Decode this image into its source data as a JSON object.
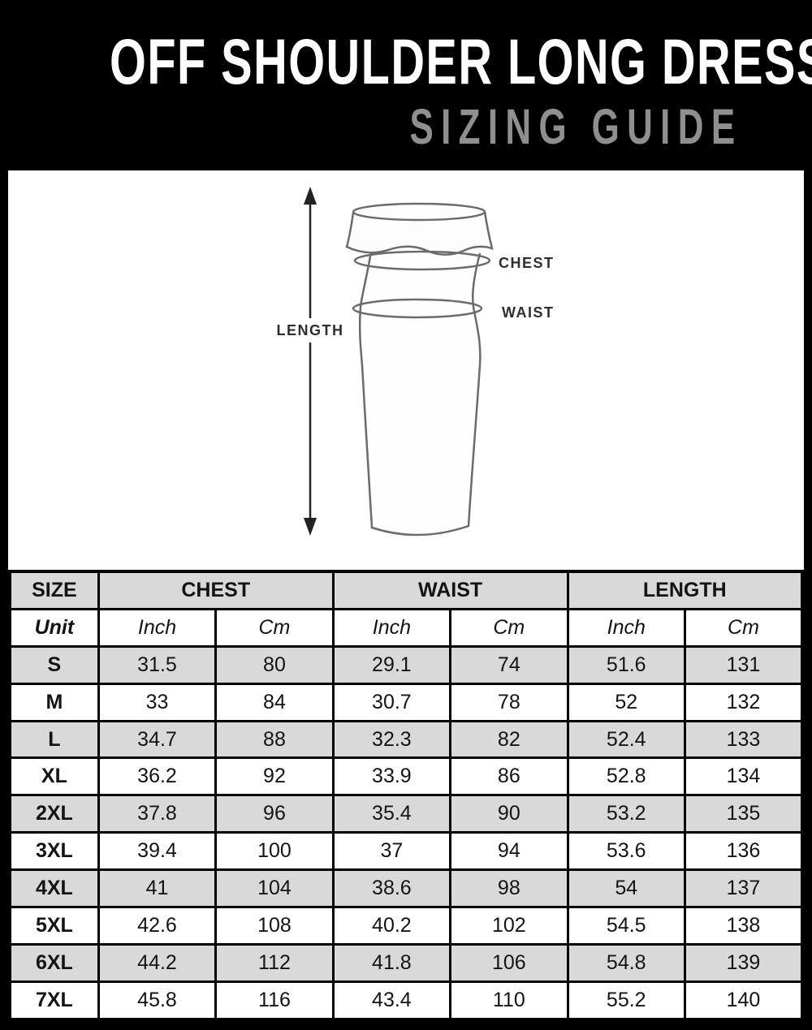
{
  "header": {
    "title": "OFF SHOULDER LONG DRESS",
    "subtitle": "SIZING GUIDE"
  },
  "diagram": {
    "length_label": "LENGTH",
    "chest_label": "CHEST",
    "waist_label": "WAIST"
  },
  "table": {
    "groups": [
      {
        "label": "SIZE",
        "span": 1
      },
      {
        "label": "CHEST",
        "span": 2
      },
      {
        "label": "WAIST",
        "span": 2
      },
      {
        "label": "LENGTH",
        "span": 2
      }
    ],
    "unit_row": [
      "Unit",
      "Inch",
      "Cm",
      "Inch",
      "Cm",
      "Inch",
      "Cm"
    ],
    "rows": [
      {
        "size": "S",
        "values": [
          "31.5",
          "80",
          "29.1",
          "74",
          "51.6",
          "131"
        ]
      },
      {
        "size": "M",
        "values": [
          "33",
          "84",
          "30.7",
          "78",
          "52",
          "132"
        ]
      },
      {
        "size": "L",
        "values": [
          "34.7",
          "88",
          "32.3",
          "82",
          "52.4",
          "133"
        ]
      },
      {
        "size": "XL",
        "values": [
          "36.2",
          "92",
          "33.9",
          "86",
          "52.8",
          "134"
        ]
      },
      {
        "size": "2XL",
        "values": [
          "37.8",
          "96",
          "35.4",
          "90",
          "53.2",
          "135"
        ]
      },
      {
        "size": "3XL",
        "values": [
          "39.4",
          "100",
          "37",
          "94",
          "53.6",
          "136"
        ]
      },
      {
        "size": "4XL",
        "values": [
          "41",
          "104",
          "38.6",
          "98",
          "54",
          "137"
        ]
      },
      {
        "size": "5XL",
        "values": [
          "42.6",
          "108",
          "40.2",
          "102",
          "54.5",
          "138"
        ]
      },
      {
        "size": "6XL",
        "values": [
          "44.2",
          "112",
          "41.8",
          "106",
          "54.8",
          "139"
        ]
      },
      {
        "size": "7XL",
        "values": [
          "45.8",
          "116",
          "43.4",
          "110",
          "55.2",
          "140"
        ]
      }
    ]
  },
  "colors": {
    "page_bg": "#000000",
    "panel_bg": "#ffffff",
    "row_alt": "#d9d9d9",
    "title_color": "#ffffff",
    "subtitle_color": "#8f8f8f",
    "table_border": "#000000",
    "diagram_stroke": "#6b6b6b"
  }
}
